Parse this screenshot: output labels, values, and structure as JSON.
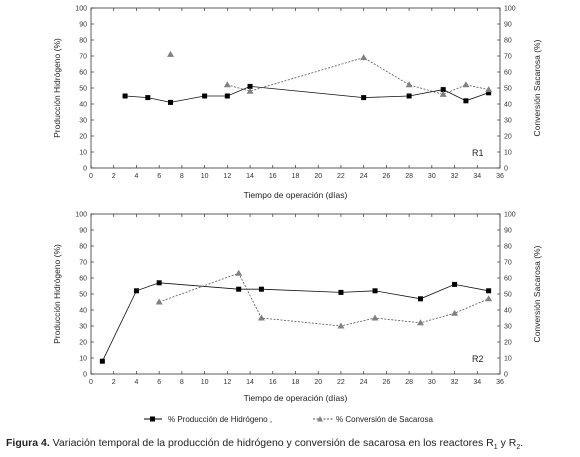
{
  "chart_data": [
    {
      "type": "line",
      "panel_label": "R1",
      "xlabel": "Tiempo de operación (días)",
      "ylabel_left": "Producción Hidrógeno (%)",
      "ylabel_right": "Conversión Sacarosa (%)",
      "xlim": [
        0,
        36
      ],
      "ylim": [
        0,
        100
      ],
      "xticks": [
        0,
        2,
        4,
        6,
        8,
        10,
        12,
        14,
        16,
        18,
        20,
        22,
        24,
        26,
        28,
        30,
        32,
        34,
        36
      ],
      "yticks": [
        0,
        10,
        20,
        30,
        40,
        50,
        60,
        70,
        80,
        90,
        100
      ],
      "series": [
        {
          "name": "% Producción de Hidrógeno",
          "marker": "square",
          "line": "solid",
          "color": "#000000",
          "x": [
            3,
            5,
            7,
            10,
            12,
            14,
            24,
            28,
            31,
            33,
            35
          ],
          "y": [
            45,
            44,
            41,
            45,
            45,
            51,
            44,
            45,
            49,
            42,
            47
          ]
        },
        {
          "name": "% Conversión de Sacarosa",
          "marker": "triangle",
          "line": "dashed",
          "color": "#808080",
          "x": [
            7,
            12,
            14,
            24,
            28,
            31,
            33,
            35
          ],
          "y": [
            71,
            52,
            48,
            69,
            52,
            46,
            52,
            49
          ],
          "connected_from_index": 1
        }
      ]
    },
    {
      "type": "line",
      "panel_label": "R2",
      "xlabel": "Tiempo de operación (días)",
      "ylabel_left": "Producción Hidrógeno (%)",
      "ylabel_right": "Conversión Sacarosa (%)",
      "xlim": [
        0,
        36
      ],
      "ylim": [
        0,
        100
      ],
      "xticks": [
        0,
        2,
        4,
        6,
        8,
        10,
        12,
        14,
        16,
        18,
        20,
        22,
        24,
        26,
        28,
        30,
        32,
        34,
        36
      ],
      "yticks": [
        0,
        10,
        20,
        30,
        40,
        50,
        60,
        70,
        80,
        90,
        100
      ],
      "series": [
        {
          "name": "% Producción de Hidrógeno",
          "marker": "square",
          "line": "solid",
          "color": "#000000",
          "x": [
            1,
            4,
            6,
            13,
            15,
            22,
            25,
            29,
            32,
            35
          ],
          "y": [
            8,
            52,
            57,
            53,
            53,
            51,
            52,
            47,
            56,
            52
          ]
        },
        {
          "name": "% Conversión de Sacarosa",
          "marker": "triangle",
          "line": "dashed",
          "color": "#808080",
          "x": [
            6,
            13,
            15,
            22,
            25,
            29,
            32,
            35
          ],
          "y": [
            45,
            63,
            35,
            30,
            35,
            32,
            38,
            47
          ],
          "connected_from_index": 0
        }
      ]
    }
  ],
  "legend": {
    "series1": "% Producción de Hidrógeno ,",
    "series2": "% Conversión de Sacarosa"
  },
  "caption": {
    "label": "Figura 4.",
    "text": " Variación temporal de la producción de hidrógeno y conversión de sacarosa en los reactores R",
    "sub1": "1",
    "mid": " y R",
    "sub2": "2",
    "end": "."
  }
}
